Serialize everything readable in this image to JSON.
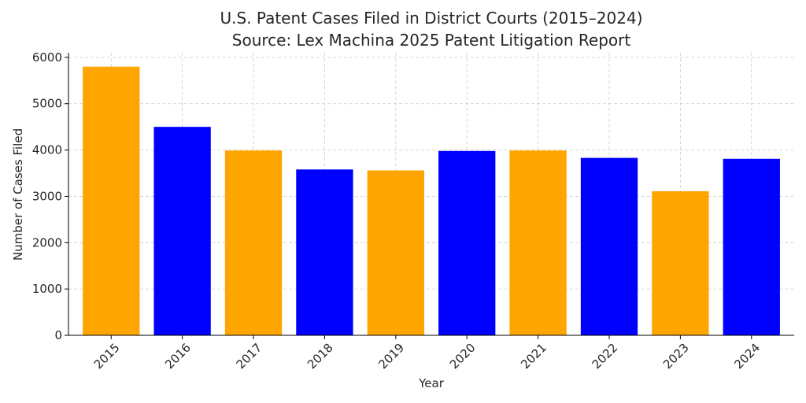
{
  "chart_data": {
    "type": "bar",
    "title": "U.S. Patent Cases Filed in District Courts (2015–2024)",
    "subtitle": "Source: Lex Machina 2025 Patent Litigation Report",
    "xlabel": "Year",
    "ylabel": "Number of Cases Filed",
    "categories": [
      "2015",
      "2016",
      "2017",
      "2018",
      "2019",
      "2020",
      "2021",
      "2022",
      "2023",
      "2024"
    ],
    "values": [
      5800,
      4500,
      3990,
      3580,
      3560,
      3980,
      3990,
      3830,
      3110,
      3810
    ],
    "bar_colors": [
      "#ffa500",
      "#0000ff",
      "#ffa500",
      "#0000ff",
      "#ffa500",
      "#0000ff",
      "#ffa500",
      "#0000ff",
      "#ffa500",
      "#0000ff"
    ],
    "ylim": [
      0,
      6100
    ],
    "yticks": [
      "0",
      "1000",
      "2000",
      "3000",
      "4000",
      "5000",
      "6000"
    ],
    "grid": true
  }
}
